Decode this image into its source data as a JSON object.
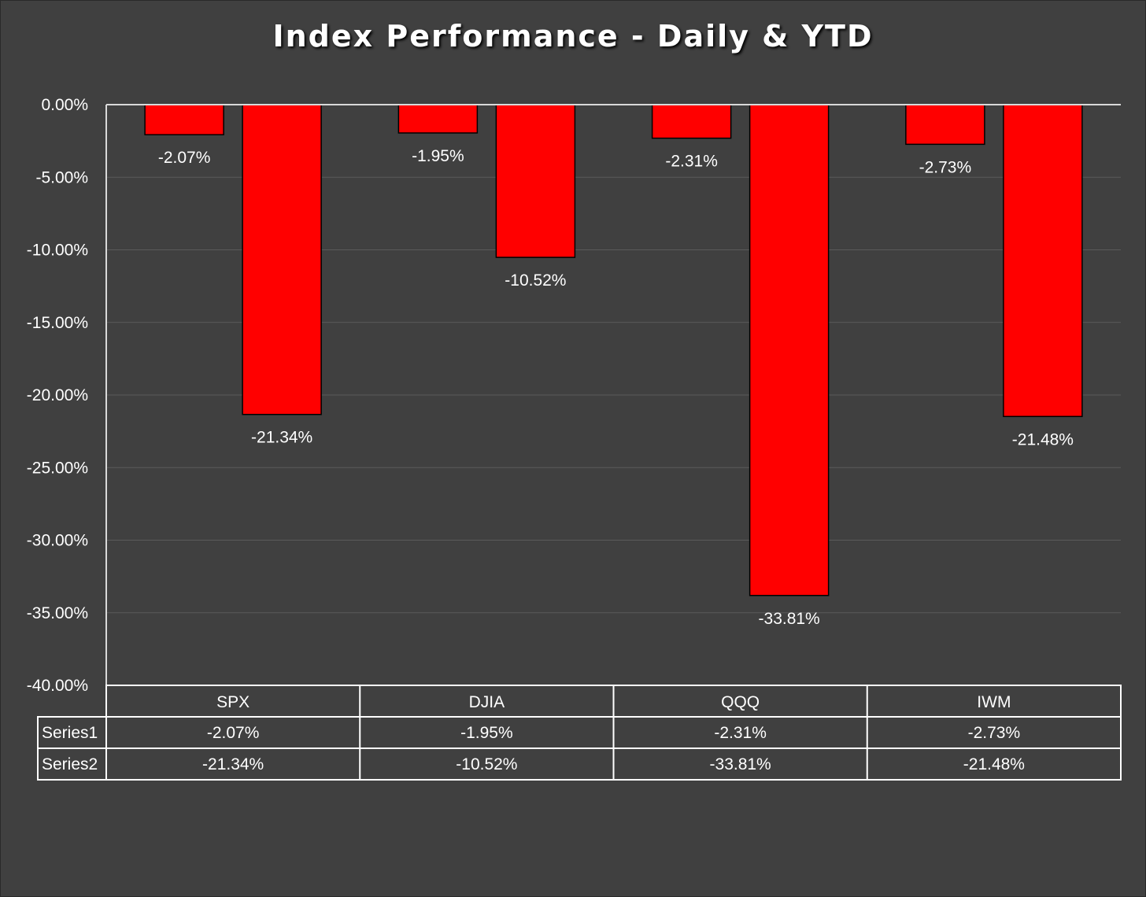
{
  "chart_data": {
    "type": "bar",
    "title": "Index Performance - Daily & YTD",
    "categories": [
      "SPX",
      "DJIA",
      "QQQ",
      "IWM"
    ],
    "series": [
      {
        "name": "Series1",
        "values": [
          -2.07,
          -1.95,
          -2.31,
          -2.73
        ],
        "labels": [
          "-2.07%",
          "-1.95%",
          "-2.31%",
          "-2.73%"
        ]
      },
      {
        "name": "Series2",
        "values": [
          -21.34,
          -10.52,
          -33.81,
          -21.48
        ],
        "labels": [
          "-21.34%",
          "-10.52%",
          "-33.81%",
          "-21.48%"
        ]
      }
    ],
    "ylim": [
      -40,
      0
    ],
    "yticks": [
      0,
      -5,
      -10,
      -15,
      -20,
      -25,
      -30,
      -35,
      -40
    ],
    "ytick_labels": [
      "0.00%",
      "-5.00%",
      "-10.00%",
      "-15.00%",
      "-20.00%",
      "-25.00%",
      "-30.00%",
      "-35.00%",
      "-40.00%"
    ],
    "grid": true,
    "data_table": true,
    "bar_color": "#ff0000",
    "background": "#404040"
  }
}
